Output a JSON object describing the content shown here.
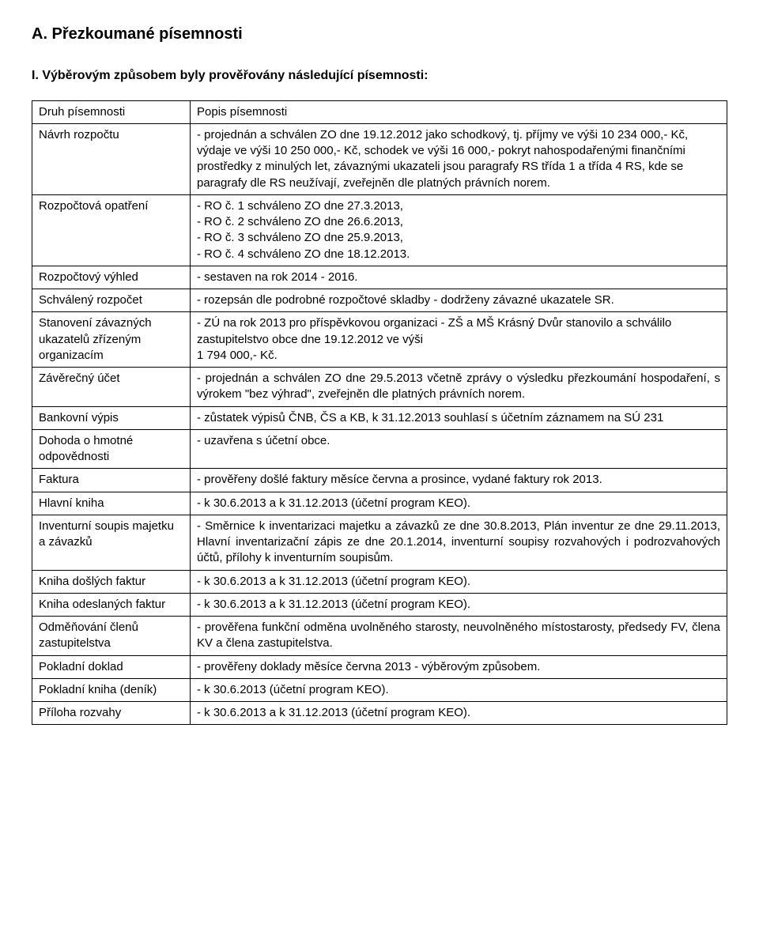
{
  "sectionTitle": "A. Přezkoumané písemnosti",
  "subTitle": "I. Výběrovým způsobem byly prověřovány následující písemnosti:",
  "table": {
    "header": {
      "col1": "Druh písemnosti",
      "col2": "Popis písemnosti"
    },
    "rows": [
      {
        "label": "Návrh rozpočtu",
        "value": "- projednán a schválen ZO dne 19.12.2012 jako schodkový, tj. příjmy ve výši 10 234 000,- Kč, výdaje ve výši 10 250 000,- Kč, schodek ve výši 16 000,- pokryt nahospodařenými finančními prostředky z minulých let, závaznými ukazateli jsou paragrafy RS třída 1 a třída 4 RS, kde se paragrafy dle RS neužívají, zveřejněn dle platných právních norem."
      },
      {
        "label": "Rozpočtová opatření",
        "value": "- RO č. 1 schváleno ZO dne 27.3.2013,\n- RO č. 2 schváleno ZO dne 26.6.2013,\n- RO č. 3 schváleno ZO dne 25.9.2013,\n- RO č. 4 schváleno ZO dne 18.12.2013."
      },
      {
        "label": "Rozpočtový výhled",
        "value": "- sestaven na rok 2014 - 2016."
      },
      {
        "label": "Schválený rozpočet",
        "value": "- rozepsán dle podrobné rozpočtové skladby - dodrženy závazné ukazatele SR."
      },
      {
        "label": "Stanovení závazných ukazatelů zřízeným organizacím",
        "value": "- ZÚ na rok 2013 pro příspěvkovou organizaci - ZŠ a MŠ Krásný Dvůr stanovilo a schválilo zastupitelstvo obce dne 19.12.2012 ve výši\n1 794 000,- Kč."
      },
      {
        "label": "Závěrečný účet",
        "value": "- projednán a schválen ZO dne 29.5.2013 včetně zprávy o výsledku přezkoumání hospodaření, s výrokem \"bez výhrad\", zveřejněn dle platných právních norem."
      },
      {
        "label": "Bankovní výpis",
        "value": "- zůstatek výpisů ČNB, ČS a KB, k 31.12.2013 souhlasí s účetním záznamem na SÚ 231"
      },
      {
        "label": "Dohoda o hmotné odpovědnosti",
        "value": "- uzavřena s účetní obce."
      },
      {
        "label": "Faktura",
        "value": "- prověřeny došlé faktury měsíce června a prosince, vydané faktury rok 2013."
      },
      {
        "label": "Hlavní kniha",
        "value": "- k 30.6.2013 a k 31.12.2013 (účetní program KEO)."
      },
      {
        "label": "Inventurní soupis majetku a závazků",
        "value": "- Směrnice k inventarizaci majetku a závazků ze dne 30.8.2013, Plán inventur ze dne 29.11.2013, Hlavní inventarizační zápis ze dne 20.1.2014, inventurní soupisy rozvahových i podrozvahových účtů, přílohy k inventurním soupisům."
      },
      {
        "label": "Kniha došlých faktur",
        "value": "- k 30.6.2013 a k 31.12.2013 (účetní program KEO)."
      },
      {
        "label": "Kniha odeslaných faktur",
        "value": "- k 30.6.2013 a k 31.12.2013 (účetní program KEO)."
      },
      {
        "label": "Odměňování členů zastupitelstva",
        "value": "- prověřena funkční odměna uvolněného starosty, neuvolněného místostarosty, předsedy FV, člena KV a člena zastupitelstva."
      },
      {
        "label": "Pokladní doklad",
        "value": "- prověřeny doklady měsíce června 2013 - výběrovým způsobem."
      },
      {
        "label": "Pokladní kniha (deník)",
        "value": "- k 30.6.2013 (účetní program KEO)."
      },
      {
        "label": "Příloha rozvahy",
        "value": "- k 30.6.2013 a k 31.12.2013 (účetní program KEO)."
      }
    ]
  }
}
